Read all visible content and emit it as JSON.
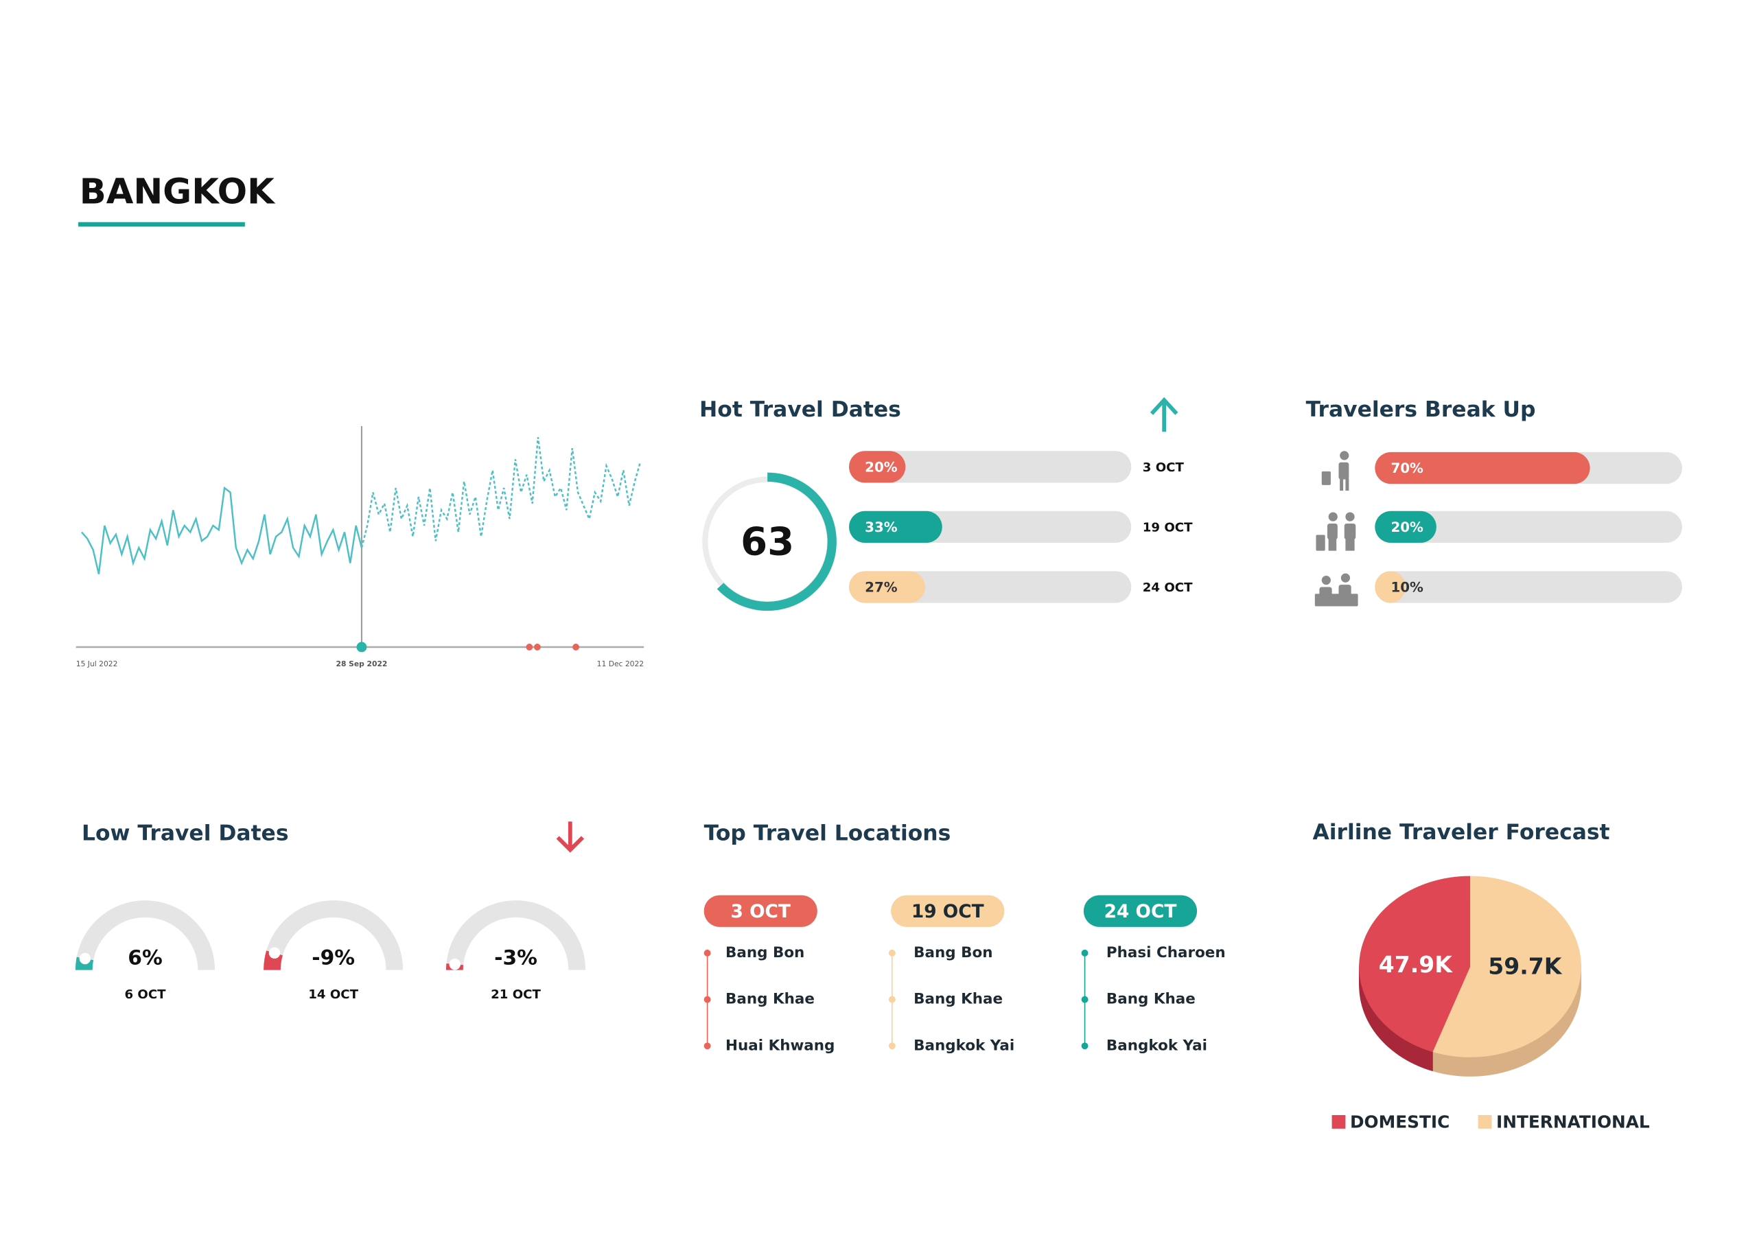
{
  "header": {
    "title": "BANGKOK"
  },
  "trend_chart": {
    "type": "line",
    "x_labels": [
      "15 Jul 2022",
      "28 Sep 2022",
      "11 Dec 2022"
    ],
    "ylim": [
      0,
      100
    ],
    "series": [
      {
        "style": "solid",
        "color": "#4dbfc6",
        "values": [
          52,
          49,
          44,
          33,
          55,
          47,
          51,
          42,
          50,
          38,
          45,
          40,
          53,
          49,
          57,
          46,
          62,
          50,
          55,
          52,
          58,
          48,
          50,
          55,
          53,
          72,
          70,
          45,
          38,
          44,
          40,
          48,
          60,
          42,
          50,
          52,
          58,
          45,
          41,
          55,
          50,
          60,
          42,
          48,
          53,
          44,
          52,
          38,
          55,
          45
        ]
      },
      {
        "style": "dashed",
        "color": "#4dbfc6",
        "values": [
          45,
          55,
          70,
          60,
          65,
          52,
          72,
          58,
          64,
          50,
          68,
          55,
          72,
          48,
          62,
          58,
          70,
          52,
          75,
          60,
          68,
          50,
          66,
          80,
          62,
          72,
          58,
          85,
          70,
          78,
          65,
          95,
          75,
          80,
          68,
          72,
          62,
          90,
          70,
          64,
          58,
          70,
          66,
          82,
          76,
          68,
          80,
          64,
          75,
          84
        ]
      }
    ]
  },
  "hot_travel_dates": {
    "title": "Hot Travel Dates",
    "score": 63,
    "bars": [
      {
        "value": 20,
        "label": "20%",
        "date": "3 OCT",
        "color": "#e8655a"
      },
      {
        "value": 33,
        "label": "33%",
        "date": "19 OCT",
        "color": "#16a596"
      },
      {
        "value": 27,
        "label": "27%",
        "date": "24 OCT",
        "color": "#f9d2a0"
      }
    ]
  },
  "travelers_break_up": {
    "title": "Travelers Break Up",
    "bars": [
      {
        "value": 70,
        "label": "70%",
        "color": "#e8655a"
      },
      {
        "value": 20,
        "label": "20%",
        "color": "#16a596"
      },
      {
        "value": 10,
        "label": "10%",
        "color": "#f9d2a0"
      }
    ]
  },
  "low_travel_dates": {
    "title": "Low Travel Dates",
    "gauges": [
      {
        "value": 6,
        "label": "6%",
        "date": "6 OCT",
        "color": "#2bb3a9"
      },
      {
        "value": -9,
        "label": "-9%",
        "date": "14 OCT",
        "color": "#e04755"
      },
      {
        "value": -3,
        "label": "-3%",
        "date": "21 OCT",
        "color": "#e04755"
      }
    ]
  },
  "top_travel_locations": {
    "title": "Top Travel Locations",
    "columns": [
      {
        "date": "3 OCT",
        "color": "#e8655a",
        "text_color": "#ffffff",
        "locations": [
          "Bang Bon",
          "Bang Khae",
          "Huai Khwang"
        ]
      },
      {
        "date": "19 OCT",
        "color": "#f9d2a0",
        "text_color": "#1d2a33",
        "locations": [
          "Bang Bon",
          "Bang Khae",
          "Bangkok Yai"
        ]
      },
      {
        "date": "24 OCT",
        "color": "#16a596",
        "text_color": "#ffffff",
        "locations": [
          "Phasi Charoen",
          "Bang Khae",
          "Bangkok Yai"
        ]
      }
    ]
  },
  "airline_forecast": {
    "type": "pie",
    "title": "Airline Traveler Forecast",
    "series": [
      {
        "name": "DOMESTIC",
        "value": 47900,
        "label": "47.9K",
        "color": "#e04755",
        "side_color": "#a8283a",
        "text_color": "#ffffff"
      },
      {
        "name": "INTERNATIONAL",
        "value": 59700,
        "label": "59.7K",
        "color": "#f9d19f",
        "side_color": "#d9b085",
        "text_color": "#1d2a33"
      }
    ]
  }
}
